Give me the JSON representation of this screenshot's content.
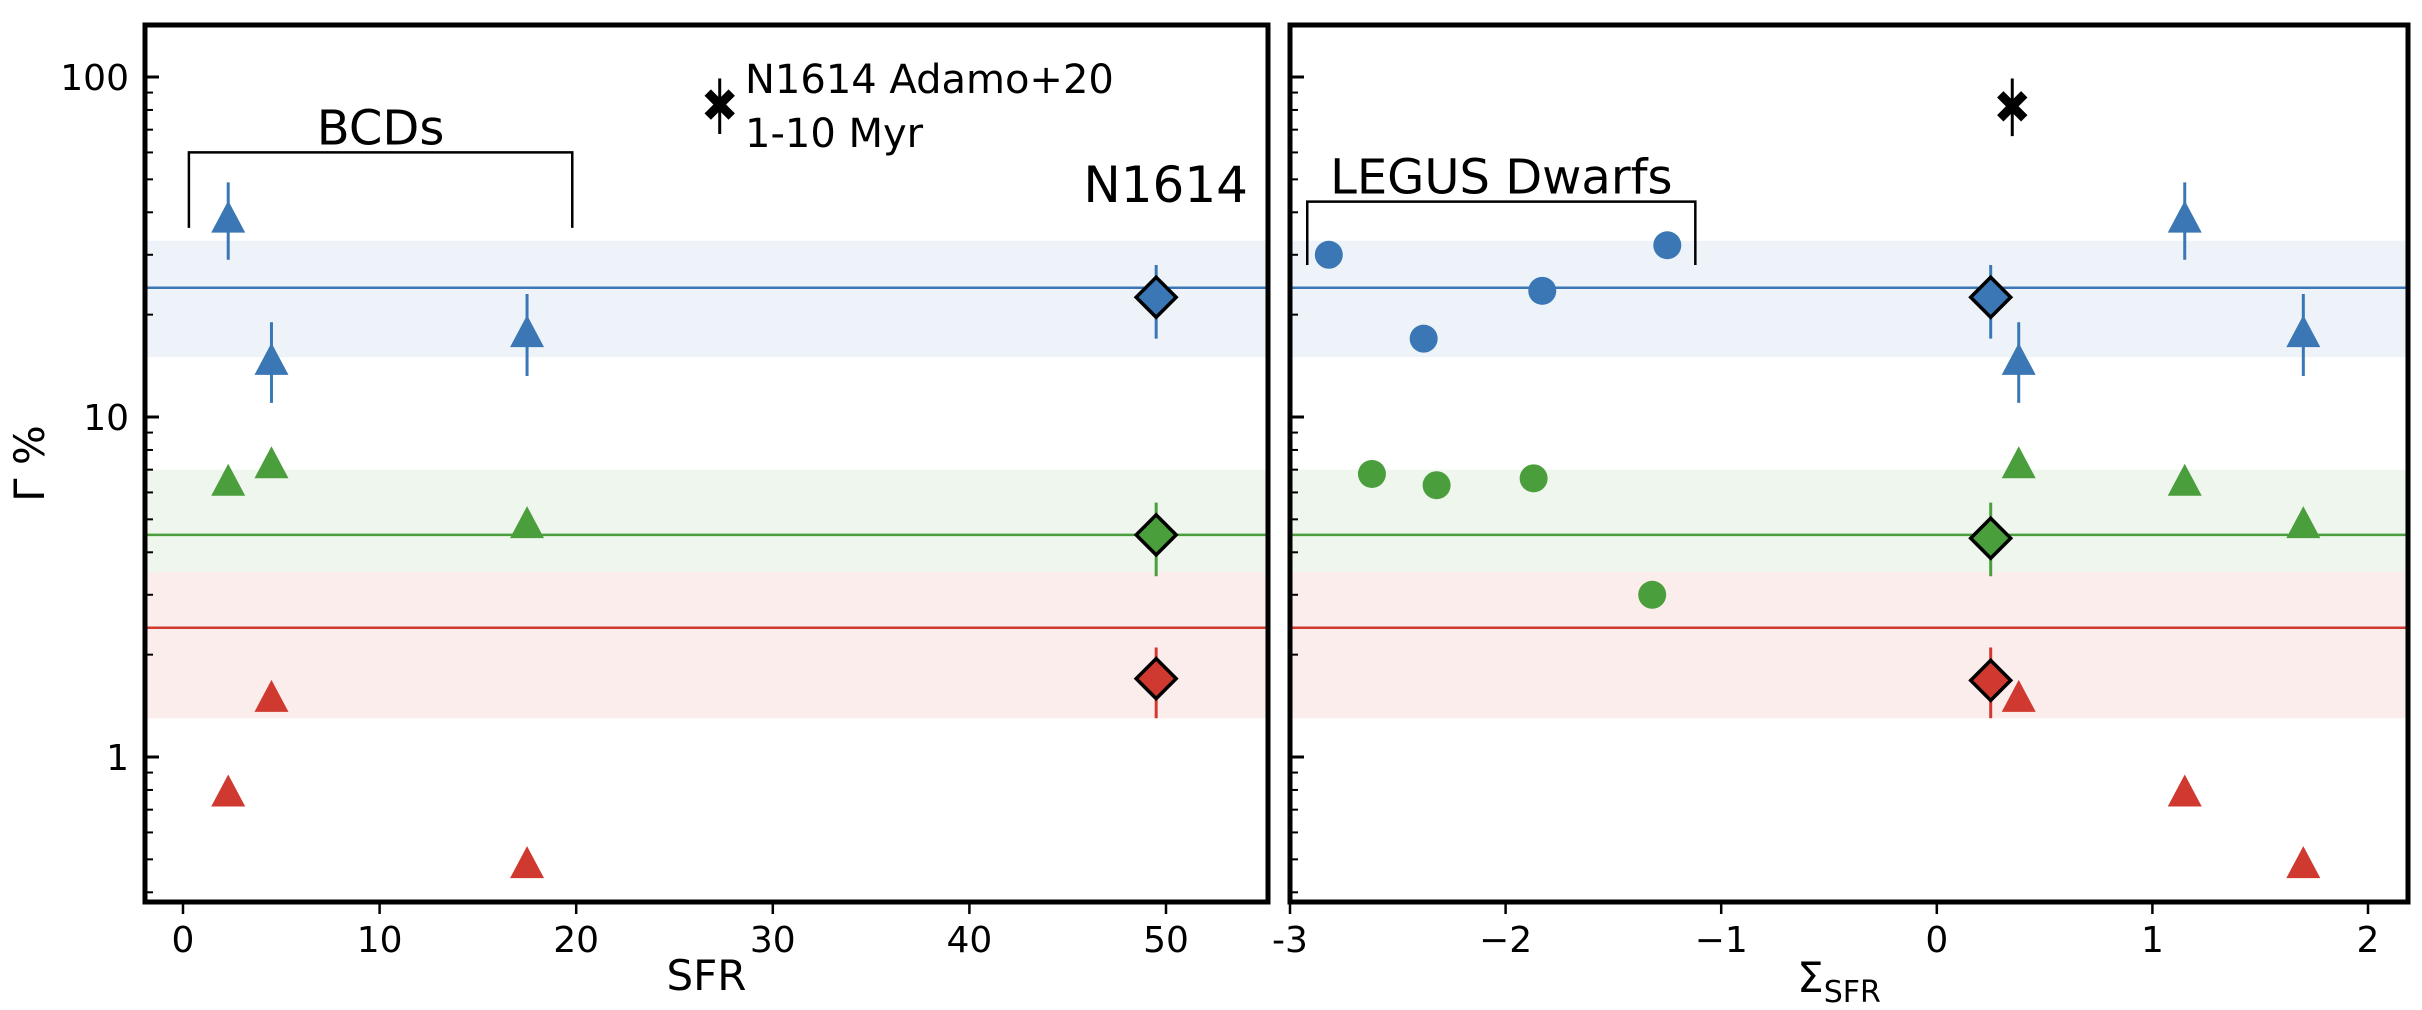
{
  "chart_data": [
    {
      "type": "scatter",
      "panel": "left",
      "xlabel": "SFR",
      "ylabel": "Γ %",
      "yscale": "log",
      "xlim": [
        -2,
        55
      ],
      "ylim": [
        0.4,
        130
      ],
      "xticks": [
        0,
        10,
        20,
        30,
        40,
        50
      ],
      "xtick_labels": [
        "0",
        "10",
        "20",
        "30",
        "40",
        "50"
      ],
      "yticks": [
        1,
        10,
        100
      ],
      "ytick_labels": [
        "1",
        "10",
        "100"
      ],
      "bands": [
        {
          "name": "blue",
          "color": "#3a77b4",
          "center": 24,
          "low": 15,
          "high": 33
        },
        {
          "name": "green",
          "color": "#4a9e3c",
          "center": 4.5,
          "low": 3.5,
          "high": 7.0
        },
        {
          "name": "red",
          "color": "#d0392f",
          "center": 2.4,
          "low": 1.3,
          "high": 3.5
        }
      ],
      "series": [
        {
          "name": "BCDs blue",
          "marker": "triangle",
          "color": "#3a77b4",
          "points": [
            {
              "x": 2.3,
              "y": 38,
              "ylo": 29,
              "yhi": 49
            },
            {
              "x": 4.5,
              "y": 14.5,
              "ylo": 11,
              "yhi": 19
            },
            {
              "x": 17.5,
              "y": 17.5,
              "ylo": 13.2,
              "yhi": 23
            }
          ]
        },
        {
          "name": "BCDs green",
          "marker": "triangle",
          "color": "#4a9e3c",
          "points": [
            {
              "x": 2.3,
              "y": 6.4
            },
            {
              "x": 4.5,
              "y": 7.2
            },
            {
              "x": 17.5,
              "y": 4.8
            }
          ]
        },
        {
          "name": "BCDs red",
          "marker": "triangle",
          "color": "#d0392f",
          "points": [
            {
              "x": 2.3,
              "y": 0.78
            },
            {
              "x": 4.5,
              "y": 1.48
            },
            {
              "x": 17.5,
              "y": 0.48
            }
          ]
        },
        {
          "name": "N1614 blue",
          "marker": "diamond",
          "color": "#3a77b4",
          "points": [
            {
              "x": 49.5,
              "y": 22.5,
              "ylo": 17,
              "yhi": 28
            }
          ]
        },
        {
          "name": "N1614 green",
          "marker": "diamond",
          "color": "#4a9e3c",
          "points": [
            {
              "x": 49.5,
              "y": 4.5,
              "ylo": 3.4,
              "yhi": 5.6
            }
          ]
        },
        {
          "name": "N1614 red",
          "marker": "diamond",
          "color": "#d0392f",
          "points": [
            {
              "x": 49.5,
              "y": 1.7,
              "ylo": 1.3,
              "yhi": 2.1
            }
          ]
        },
        {
          "name": "N1614 Adamo+20",
          "marker": "x",
          "color": "#000000",
          "points": [
            {
              "x": 27.3,
              "y": 83,
              "ylo": 68,
              "yhi": 99
            }
          ]
        }
      ],
      "annotations": {
        "bracket_label": "BCDs",
        "bracket_x": [
          0.3,
          19.8
        ],
        "bracket_y": [
          36,
          60
        ],
        "adamo_line1": "N1614 Adamo+20",
        "adamo_line2": "1-10 Myr",
        "n1614_label": "N1614"
      }
    },
    {
      "type": "scatter",
      "panel": "right",
      "xlabel_main": "Σ",
      "xlabel_sub": "SFR",
      "yscale": "log",
      "xlim": [
        -3.1,
        2.22
      ],
      "ylim": [
        0.4,
        130
      ],
      "xticks": [
        -3,
        -2,
        -1,
        0,
        1,
        2
      ],
      "xtick_labels": [
        "-3",
        "−2",
        "−1",
        "0",
        "1",
        "2"
      ],
      "yticks": [
        1,
        10,
        100
      ],
      "bands": [
        {
          "name": "blue",
          "color": "#3a77b4",
          "center": 24,
          "low": 15,
          "high": 33
        },
        {
          "name": "green",
          "color": "#4a9e3c",
          "center": 4.5,
          "low": 3.5,
          "high": 7.0
        },
        {
          "name": "red",
          "color": "#d0392f",
          "center": 2.4,
          "low": 1.3,
          "high": 3.5
        }
      ],
      "series": [
        {
          "name": "LEGUS blue",
          "marker": "circle",
          "color": "#3a77b4",
          "points": [
            {
              "x": -2.82,
              "y": 30
            },
            {
              "x": -2.38,
              "y": 17
            },
            {
              "x": -1.83,
              "y": 23.5
            },
            {
              "x": -1.25,
              "y": 32
            }
          ]
        },
        {
          "name": "LEGUS green",
          "marker": "circle",
          "color": "#4a9e3c",
          "points": [
            {
              "x": -2.62,
              "y": 6.8
            },
            {
              "x": -2.32,
              "y": 6.3
            },
            {
              "x": -1.87,
              "y": 6.6
            },
            {
              "x": -1.32,
              "y": 3.0
            }
          ]
        },
        {
          "name": "BCDs blue",
          "marker": "triangle",
          "color": "#3a77b4",
          "points": [
            {
              "x": 1.15,
              "y": 38,
              "ylo": 29,
              "yhi": 49
            },
            {
              "x": 0.38,
              "y": 14.5,
              "ylo": 11,
              "yhi": 19
            },
            {
              "x": 1.7,
              "y": 17.5,
              "ylo": 13.2,
              "yhi": 23
            }
          ]
        },
        {
          "name": "BCDs green",
          "marker": "triangle",
          "color": "#4a9e3c",
          "points": [
            {
              "x": 1.15,
              "y": 6.4
            },
            {
              "x": 0.38,
              "y": 7.2
            },
            {
              "x": 1.7,
              "y": 4.8
            }
          ]
        },
        {
          "name": "BCDs red",
          "marker": "triangle",
          "color": "#d0392f",
          "points": [
            {
              "x": 1.15,
              "y": 0.78
            },
            {
              "x": 0.38,
              "y": 1.48
            },
            {
              "x": 1.7,
              "y": 0.48
            }
          ]
        },
        {
          "name": "N1614 blue",
          "marker": "diamond",
          "color": "#3a77b4",
          "points": [
            {
              "x": 0.25,
              "y": 22.5,
              "ylo": 17,
              "yhi": 28
            }
          ]
        },
        {
          "name": "N1614 green",
          "marker": "diamond",
          "color": "#4a9e3c",
          "points": [
            {
              "x": 0.25,
              "y": 4.4,
              "ylo": 3.4,
              "yhi": 5.6
            }
          ]
        },
        {
          "name": "N1614 red",
          "marker": "diamond",
          "color": "#d0392f",
          "points": [
            {
              "x": 0.25,
              "y": 1.68,
              "ylo": 1.3,
              "yhi": 2.1
            }
          ]
        },
        {
          "name": "N1614 Adamo+20",
          "marker": "x",
          "color": "#000000",
          "points": [
            {
              "x": 0.35,
              "y": 82,
              "ylo": 67,
              "yhi": 99
            }
          ]
        }
      ],
      "annotations": {
        "bracket_label": "LEGUS Dwarfs",
        "bracket_x": [
          -2.92,
          -1.12
        ],
        "bracket_y": [
          28,
          43
        ]
      }
    }
  ]
}
